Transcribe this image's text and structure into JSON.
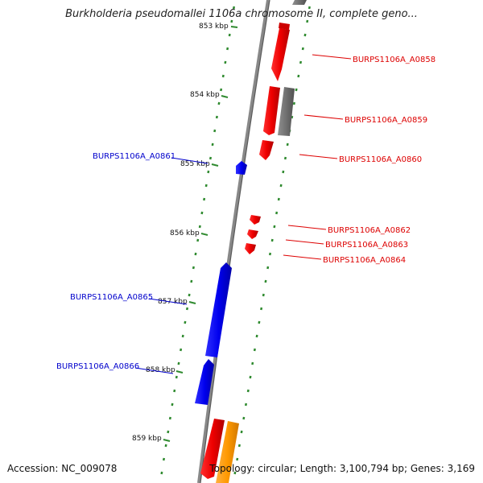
{
  "title": "Burkholderia pseudomallei 1106a chromosome II, complete geno...",
  "footer": {
    "accession": "Accession: NC_009078",
    "summary": "Topology: circular; Length: 3,100,794 bp; Genes: 3,169"
  },
  "colors": {
    "forward_strand": "#ee0000",
    "reverse_strand": "#0000ee",
    "other_feature": "#707070",
    "orange_feature": "#ff9900",
    "tick": "#2f8a2f",
    "backbone": "#888888"
  },
  "ruler": [
    {
      "label": "853 kbp"
    },
    {
      "label": "854 kbp"
    },
    {
      "label": "855 kbp"
    },
    {
      "label": "856 kbp"
    },
    {
      "label": "857 kbp"
    },
    {
      "label": "858 kbp"
    },
    {
      "label": "859 kbp"
    }
  ],
  "genes": [
    {
      "id": "BURPS1106A_A0858",
      "strand": "forward"
    },
    {
      "id": "BURPS1106A_A0859",
      "strand": "forward"
    },
    {
      "id": "BURPS1106A_A0860",
      "strand": "forward"
    },
    {
      "id": "BURPS1106A_A0861",
      "strand": "reverse"
    },
    {
      "id": "BURPS1106A_A0862",
      "strand": "forward"
    },
    {
      "id": "BURPS1106A_A0863",
      "strand": "forward"
    },
    {
      "id": "BURPS1106A_A0864",
      "strand": "forward"
    },
    {
      "id": "BURPS1106A_A0865",
      "strand": "reverse"
    },
    {
      "id": "BURPS1106A_A0866",
      "strand": "reverse"
    }
  ]
}
